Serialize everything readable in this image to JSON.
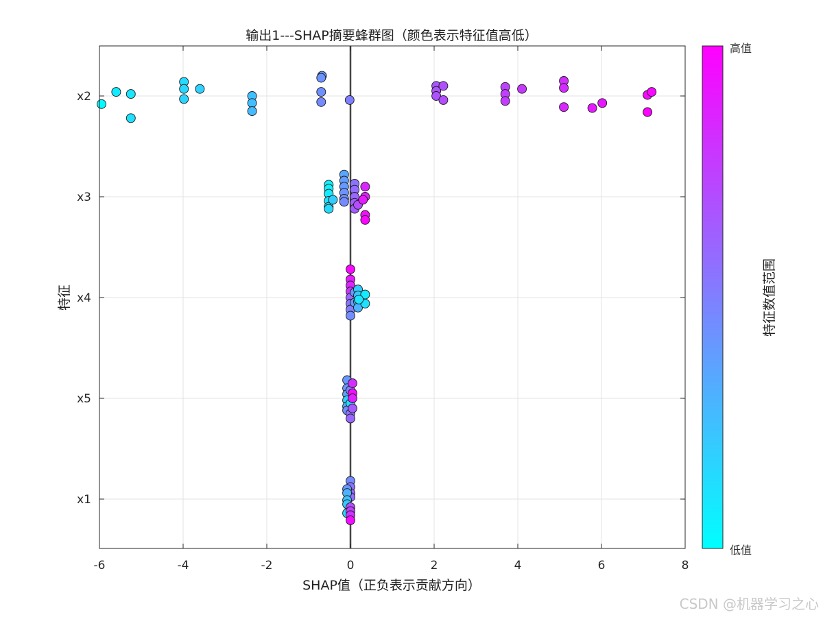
{
  "chart_data": {
    "type": "scatter",
    "subtype": "shap-beeswarm",
    "title": "输出1---SHAP摘要蜂群图（颜色表示特征值高低）",
    "xlabel": "SHAP值（正负表示贡献方向）",
    "ylabel": "特征",
    "xlim": [
      -6,
      8
    ],
    "xticks": [
      -6,
      -4,
      -2,
      0,
      2,
      4,
      6,
      8
    ],
    "categories": [
      "x2",
      "x3",
      "x4",
      "x5",
      "x1"
    ],
    "grid": true,
    "zero_line": true,
    "colorbar": {
      "label": "特征数值范围",
      "high_label": "高值",
      "low_label": "低值",
      "low_color": "#00ffff",
      "high_color": "#ff00ff"
    },
    "series": [
      {
        "feature": "x2",
        "points": [
          {
            "shap": -5.95,
            "offset": -0.08,
            "value": 0.02
          },
          {
            "shap": -5.6,
            "offset": 0.04,
            "value": 0.08
          },
          {
            "shap": -5.25,
            "offset": 0.02,
            "value": 0.1
          },
          {
            "shap": -5.25,
            "offset": -0.22,
            "value": 0.12
          },
          {
            "shap": -3.98,
            "offset": 0.14,
            "value": 0.15
          },
          {
            "shap": -3.98,
            "offset": 0.07,
            "value": 0.16
          },
          {
            "shap": -3.98,
            "offset": -0.03,
            "value": 0.17
          },
          {
            "shap": -3.6,
            "offset": 0.07,
            "value": 0.18
          },
          {
            "shap": -2.35,
            "offset": 0.0,
            "value": 0.25
          },
          {
            "shap": -2.35,
            "offset": -0.07,
            "value": 0.26
          },
          {
            "shap": -2.35,
            "offset": -0.15,
            "value": 0.27
          },
          {
            "shap": -0.68,
            "offset": 0.2,
            "value": 0.4
          },
          {
            "shap": -0.7,
            "offset": 0.18,
            "value": 0.42
          },
          {
            "shap": -0.7,
            "offset": 0.04,
            "value": 0.44
          },
          {
            "shap": -0.7,
            "offset": -0.06,
            "value": 0.46
          },
          {
            "shap": -0.02,
            "offset": -0.04,
            "value": 0.5
          },
          {
            "shap": 2.05,
            "offset": 0.1,
            "value": 0.66
          },
          {
            "shap": 2.05,
            "offset": 0.05,
            "value": 0.67
          },
          {
            "shap": 2.05,
            "offset": 0.0,
            "value": 0.68
          },
          {
            "shap": 2.22,
            "offset": 0.1,
            "value": 0.69
          },
          {
            "shap": 2.22,
            "offset": -0.04,
            "value": 0.7
          },
          {
            "shap": 3.7,
            "offset": 0.09,
            "value": 0.74
          },
          {
            "shap": 3.7,
            "offset": 0.02,
            "value": 0.75
          },
          {
            "shap": 3.7,
            "offset": -0.05,
            "value": 0.76
          },
          {
            "shap": 4.1,
            "offset": 0.07,
            "value": 0.78
          },
          {
            "shap": 5.1,
            "offset": 0.15,
            "value": 0.82
          },
          {
            "shap": 5.1,
            "offset": 0.08,
            "value": 0.83
          },
          {
            "shap": 5.1,
            "offset": -0.11,
            "value": 0.85
          },
          {
            "shap": 5.78,
            "offset": -0.12,
            "value": 0.9
          },
          {
            "shap": 6.02,
            "offset": -0.07,
            "value": 0.91
          },
          {
            "shap": 7.1,
            "offset": 0.01,
            "value": 0.96
          },
          {
            "shap": 7.2,
            "offset": 0.04,
            "value": 0.97
          },
          {
            "shap": 7.1,
            "offset": -0.16,
            "value": 0.99
          }
        ]
      },
      {
        "feature": "x3",
        "points": [
          {
            "shap": -0.52,
            "offset": 0.12,
            "value": 0.05
          },
          {
            "shap": -0.52,
            "offset": 0.08,
            "value": 0.06
          },
          {
            "shap": -0.52,
            "offset": 0.03,
            "value": 0.08
          },
          {
            "shap": -0.52,
            "offset": -0.04,
            "value": 0.1
          },
          {
            "shap": -0.52,
            "offset": -0.1,
            "value": 0.12
          },
          {
            "shap": -0.52,
            "offset": -0.12,
            "value": 0.14
          },
          {
            "shap": -0.42,
            "offset": -0.03,
            "value": 0.2
          },
          {
            "shap": -0.15,
            "offset": 0.22,
            "value": 0.35
          },
          {
            "shap": -0.15,
            "offset": 0.16,
            "value": 0.38
          },
          {
            "shap": -0.15,
            "offset": 0.1,
            "value": 0.4
          },
          {
            "shap": -0.15,
            "offset": 0.04,
            "value": 0.42
          },
          {
            "shap": -0.15,
            "offset": -0.02,
            "value": 0.44
          },
          {
            "shap": -0.15,
            "offset": -0.05,
            "value": 0.46
          },
          {
            "shap": 0.1,
            "offset": 0.13,
            "value": 0.55
          },
          {
            "shap": 0.1,
            "offset": 0.07,
            "value": 0.57
          },
          {
            "shap": 0.1,
            "offset": 0.0,
            "value": 0.6
          },
          {
            "shap": 0.1,
            "offset": -0.06,
            "value": 0.62
          },
          {
            "shap": 0.1,
            "offset": -0.12,
            "value": 0.64
          },
          {
            "shap": 0.18,
            "offset": -0.08,
            "value": 0.7
          },
          {
            "shap": 0.35,
            "offset": 0.1,
            "value": 0.85
          },
          {
            "shap": 0.35,
            "offset": 0.0,
            "value": 0.88
          },
          {
            "shap": 0.3,
            "offset": -0.03,
            "value": 0.9
          },
          {
            "shap": 0.35,
            "offset": -0.18,
            "value": 0.95
          },
          {
            "shap": 0.35,
            "offset": -0.23,
            "value": 0.98
          }
        ]
      },
      {
        "feature": "x4",
        "points": [
          {
            "shap": 0.0,
            "offset": 0.28,
            "value": 0.97
          },
          {
            "shap": 0.0,
            "offset": 0.18,
            "value": 0.9
          },
          {
            "shap": 0.0,
            "offset": 0.12,
            "value": 0.85
          },
          {
            "shap": 0.0,
            "offset": 0.06,
            "value": 0.8
          },
          {
            "shap": 0.0,
            "offset": 0.0,
            "value": 0.6
          },
          {
            "shap": 0.0,
            "offset": -0.06,
            "value": 0.55
          },
          {
            "shap": 0.0,
            "offset": -0.12,
            "value": 0.5
          },
          {
            "shap": 0.0,
            "offset": -0.18,
            "value": 0.45
          },
          {
            "shap": 0.1,
            "offset": 0.05,
            "value": 0.4
          },
          {
            "shap": 0.1,
            "offset": -0.05,
            "value": 0.38
          },
          {
            "shap": 0.18,
            "offset": 0.08,
            "value": 0.2
          },
          {
            "shap": 0.18,
            "offset": 0.02,
            "value": 0.22
          },
          {
            "shap": 0.18,
            "offset": -0.04,
            "value": 0.25
          },
          {
            "shap": 0.18,
            "offset": -0.1,
            "value": 0.3
          },
          {
            "shap": 0.35,
            "offset": 0.03,
            "value": 0.08
          },
          {
            "shap": 0.35,
            "offset": -0.06,
            "value": 0.12
          },
          {
            "shap": 0.2,
            "offset": -0.02,
            "value": 0.1
          }
        ]
      },
      {
        "feature": "x5",
        "points": [
          {
            "shap": -0.08,
            "offset": 0.18,
            "value": 0.4
          },
          {
            "shap": -0.08,
            "offset": 0.1,
            "value": 0.42
          },
          {
            "shap": -0.08,
            "offset": 0.04,
            "value": 0.35
          },
          {
            "shap": -0.08,
            "offset": -0.02,
            "value": 0.2
          },
          {
            "shap": -0.08,
            "offset": -0.08,
            "value": 0.3
          },
          {
            "shap": -0.08,
            "offset": -0.12,
            "value": 0.45
          },
          {
            "shap": 0.0,
            "offset": 0.08,
            "value": 0.5
          },
          {
            "shap": 0.0,
            "offset": -0.05,
            "value": 0.15
          },
          {
            "shap": 0.0,
            "offset": -0.15,
            "value": 0.55
          },
          {
            "shap": 0.0,
            "offset": -0.2,
            "value": 0.6
          },
          {
            "shap": 0.05,
            "offset": 0.15,
            "value": 0.82
          },
          {
            "shap": 0.05,
            "offset": 0.05,
            "value": 0.95
          },
          {
            "shap": 0.05,
            "offset": 0.0,
            "value": 0.88
          },
          {
            "shap": 0.05,
            "offset": -0.1,
            "value": 0.65
          }
        ]
      },
      {
        "feature": "x1",
        "points": [
          {
            "shap": 0.0,
            "offset": 0.18,
            "value": 0.45
          },
          {
            "shap": 0.0,
            "offset": 0.12,
            "value": 0.55
          },
          {
            "shap": 0.0,
            "offset": 0.06,
            "value": 0.6
          },
          {
            "shap": 0.0,
            "offset": 0.02,
            "value": 0.58
          },
          {
            "shap": -0.08,
            "offset": 0.1,
            "value": 0.4
          },
          {
            "shap": -0.08,
            "offset": 0.06,
            "value": 0.3
          },
          {
            "shap": -0.08,
            "offset": -0.01,
            "value": 0.25
          },
          {
            "shap": -0.08,
            "offset": -0.05,
            "value": 0.2
          },
          {
            "shap": -0.08,
            "offset": -0.14,
            "value": 0.15
          },
          {
            "shap": 0.0,
            "offset": -0.08,
            "value": 0.7
          },
          {
            "shap": 0.0,
            "offset": -0.12,
            "value": 0.75
          },
          {
            "shap": 0.0,
            "offset": -0.16,
            "value": 0.8
          },
          {
            "shap": 0.0,
            "offset": -0.21,
            "value": 0.95
          }
        ]
      }
    ]
  },
  "watermark": "CSDN @机器学习之心"
}
